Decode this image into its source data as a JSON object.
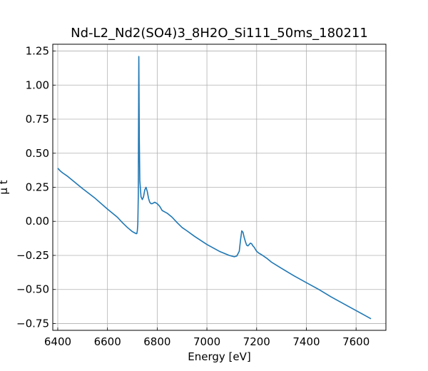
{
  "chart_data": {
    "type": "line",
    "title": "Nd-L2_Nd2(SO4)3_8H2O_Si111_50ms_180211",
    "xlabel": "Energy [eV]",
    "ylabel": "μ t",
    "xlim": [
      6380,
      7720
    ],
    "ylim": [
      -0.8,
      1.3
    ],
    "grid": true,
    "xticks": [
      6400,
      6600,
      6800,
      7000,
      7200,
      7400,
      7600
    ],
    "xtick_labels": [
      "6400",
      "6600",
      "6800",
      "7000",
      "7200",
      "7400",
      "7600"
    ],
    "yticks": [
      -0.75,
      -0.5,
      -0.25,
      0.0,
      0.25,
      0.5,
      0.75,
      1.0,
      1.25
    ],
    "ytick_labels": [
      "−0.75",
      "−0.50",
      "−0.25",
      "0.00",
      "0.25",
      "0.50",
      "0.75",
      "1.00",
      "1.25"
    ],
    "color": "#1f77b4",
    "series": [
      {
        "x": [
          6400,
          6410,
          6420,
          6440,
          6460,
          6480,
          6500,
          6550,
          6600,
          6620,
          6640,
          6660,
          6680,
          6700,
          6710,
          6715,
          6718,
          6720,
          6722,
          6724,
          6726,
          6728,
          6730,
          6735,
          6740,
          6745,
          6750,
          6755,
          6760,
          6765,
          6770,
          6775,
          6780,
          6790,
          6800,
          6810,
          6820,
          6830,
          6840,
          6860,
          6880,
          6900,
          6920,
          6950,
          7000,
          7050,
          7090,
          7110,
          7120,
          7130,
          7135,
          7140,
          7145,
          7150,
          7155,
          7160,
          7165,
          7170,
          7175,
          7180,
          7185,
          7190,
          7195,
          7200,
          7210,
          7220,
          7240,
          7260,
          7300,
          7350,
          7400,
          7450,
          7500,
          7550,
          7600,
          7660
        ],
        "y": [
          0.39,
          0.37,
          0.355,
          0.33,
          0.3,
          0.27,
          0.24,
          0.17,
          0.09,
          0.06,
          0.03,
          -0.01,
          -0.045,
          -0.075,
          -0.085,
          -0.09,
          -0.09,
          -0.07,
          -0.02,
          0.2,
          1.21,
          0.6,
          0.3,
          0.18,
          0.16,
          0.18,
          0.23,
          0.25,
          0.22,
          0.17,
          0.14,
          0.13,
          0.13,
          0.14,
          0.13,
          0.11,
          0.08,
          0.07,
          0.06,
          0.03,
          -0.01,
          -0.045,
          -0.07,
          -0.11,
          -0.17,
          -0.22,
          -0.25,
          -0.26,
          -0.255,
          -0.22,
          -0.14,
          -0.07,
          -0.08,
          -0.12,
          -0.15,
          -0.175,
          -0.18,
          -0.17,
          -0.16,
          -0.165,
          -0.18,
          -0.19,
          -0.205,
          -0.22,
          -0.235,
          -0.245,
          -0.27,
          -0.3,
          -0.345,
          -0.4,
          -0.45,
          -0.5,
          -0.555,
          -0.605,
          -0.655,
          -0.715
        ]
      }
    ]
  }
}
